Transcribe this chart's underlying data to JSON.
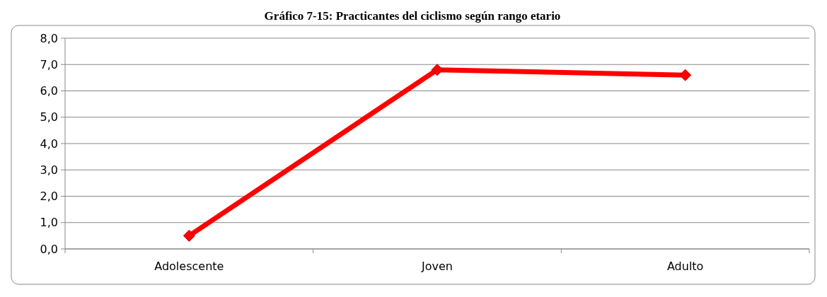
{
  "chart_data": {
    "type": "line",
    "title": "Gráfico 7-15: Practicantes del ciclismo según rango etario",
    "categories": [
      "Adolescente",
      "Joven",
      "Adulto"
    ],
    "series": [
      {
        "color": "#ff0000",
        "values": [
          0.5,
          6.8,
          6.6
        ]
      }
    ],
    "ylim": [
      0,
      8
    ],
    "yticks": [
      {
        "value": 0,
        "label": "0,0"
      },
      {
        "value": 1,
        "label": "1,0"
      },
      {
        "value": 2,
        "label": "2,0"
      },
      {
        "value": 3,
        "label": "3,0"
      },
      {
        "value": 4,
        "label": "4,0"
      },
      {
        "value": 5,
        "label": "5,0"
      },
      {
        "value": 6,
        "label": "6,0"
      },
      {
        "value": 7,
        "label": "7,0"
      },
      {
        "value": 8,
        "label": "8,0"
      }
    ],
    "grid": "y",
    "marker": "diamond",
    "line_style": "solid"
  }
}
